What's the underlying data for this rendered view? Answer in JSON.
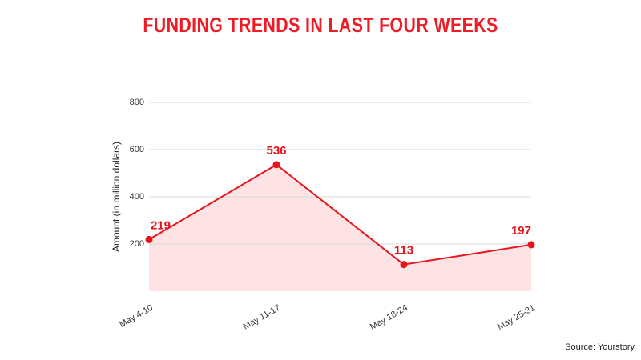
{
  "chart_data": {
    "type": "line",
    "title": "FUNDING TRENDS IN LAST FOUR WEEKS",
    "y_label": "Amount (in million dollars)",
    "categories": [
      "May 4-10",
      "May 11-17",
      "May 18-24",
      "May 25-31"
    ],
    "values": [
      219,
      536,
      113,
      197
    ],
    "color": "#e8141b",
    "area_color": "#fde3e3",
    "ylim": [
      0,
      800
    ],
    "yticks": [
      200,
      400,
      600,
      800
    ],
    "grid": true,
    "source": "Source: Yourstory"
  }
}
